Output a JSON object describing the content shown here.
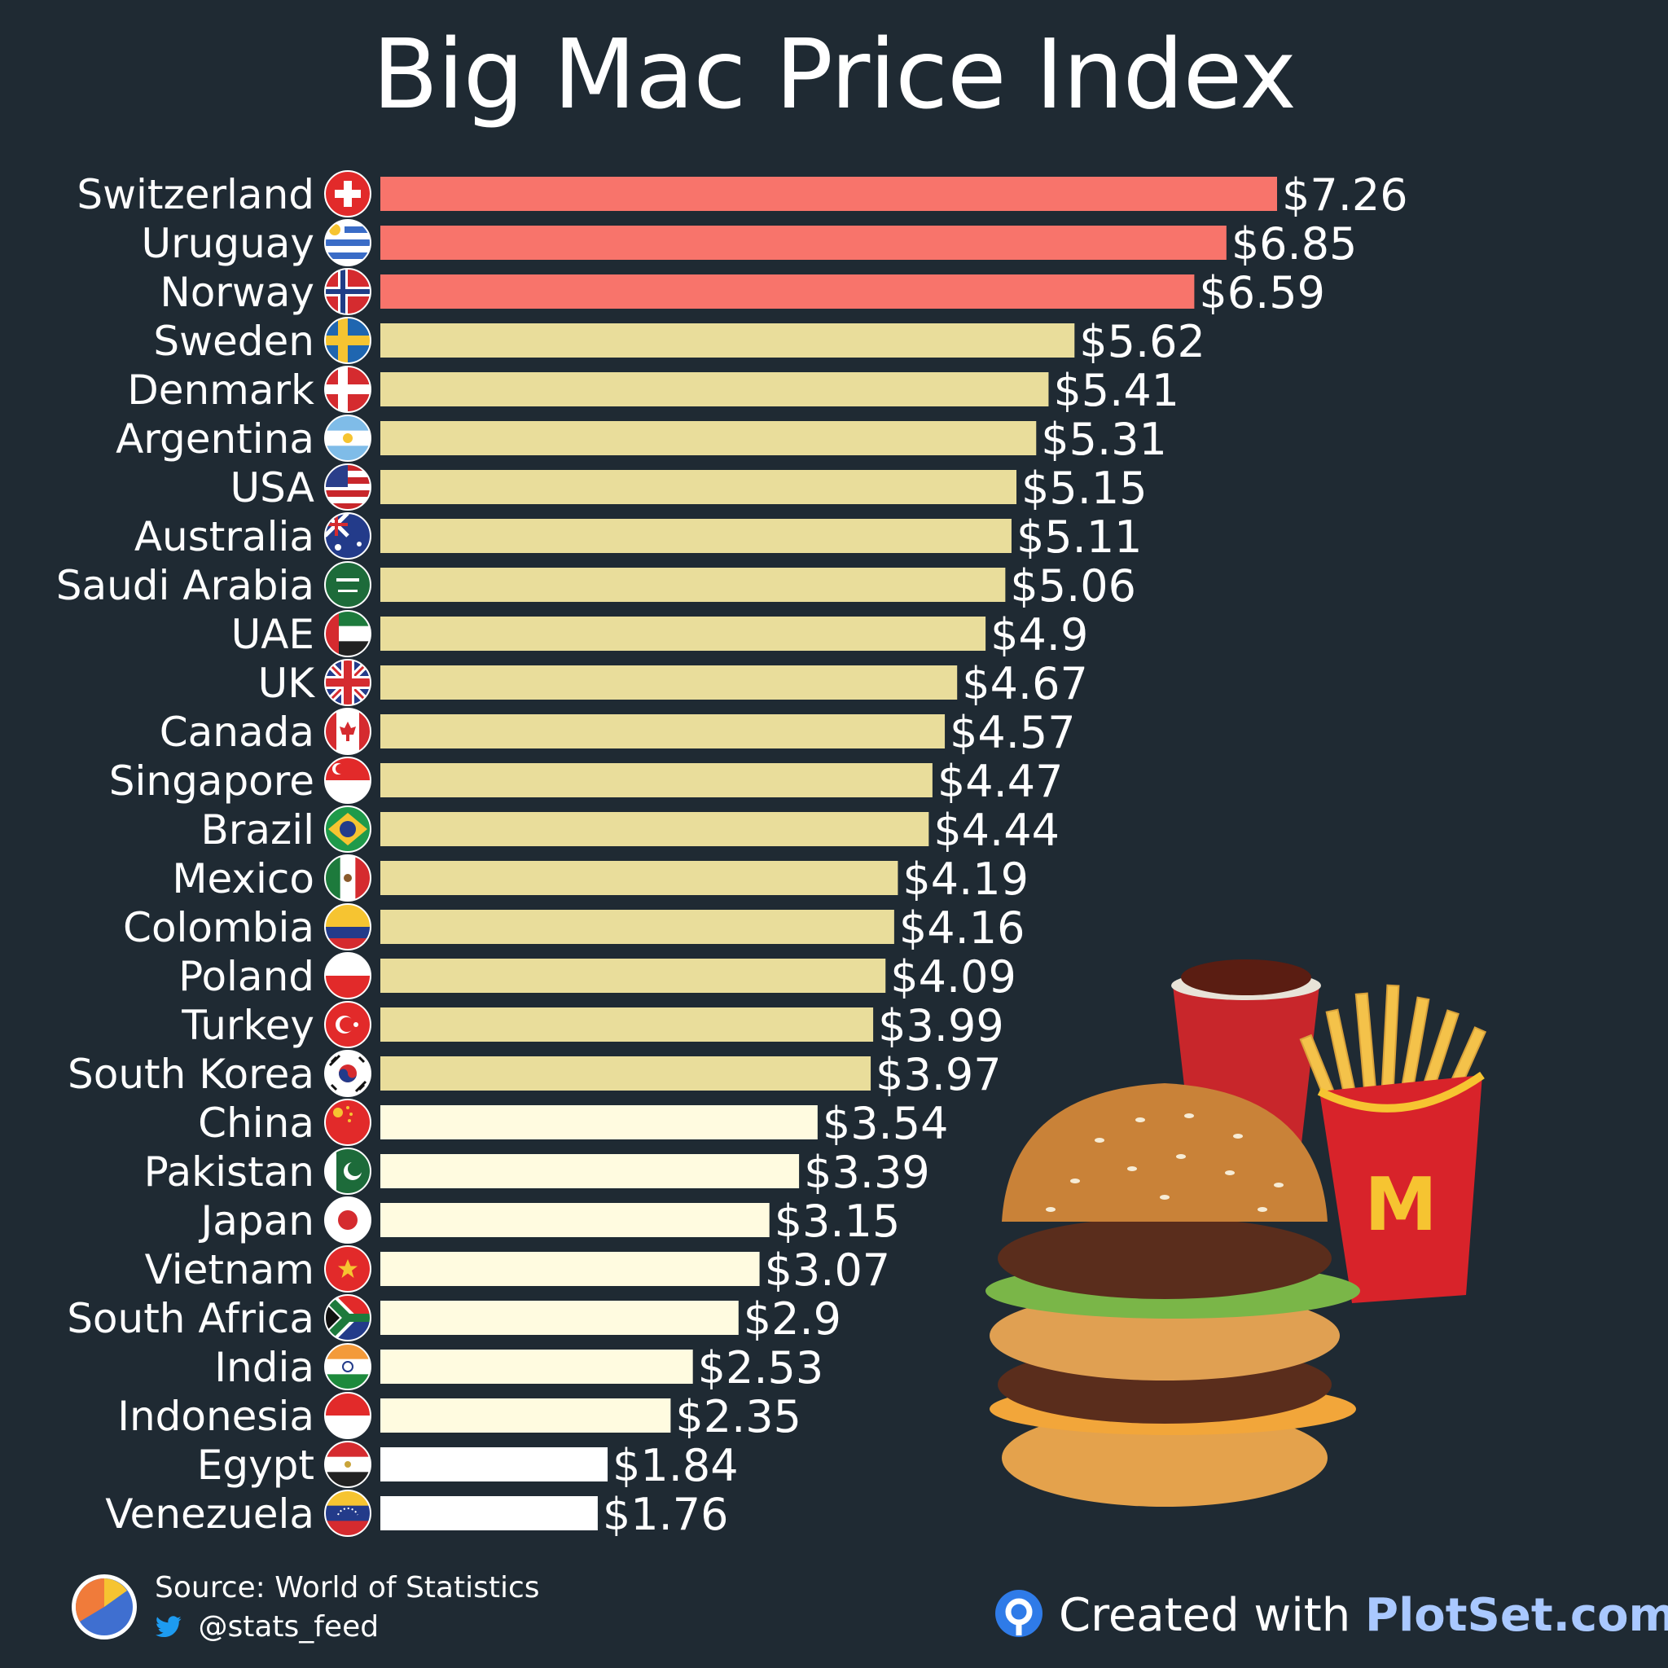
{
  "title": "Big Mac Price Index",
  "colors": {
    "background": "#1f2a33",
    "tier_high": "#f8746b",
    "tier_mid": "#e9dd9b",
    "tier_low": "#fffbe0",
    "tier_lowest": "#ffffff"
  },
  "chart_data": {
    "type": "bar",
    "orientation": "horizontal",
    "title": "Big Mac Price Index",
    "categories": [
      "Switzerland",
      "Uruguay",
      "Norway",
      "Sweden",
      "Denmark",
      "Argentina",
      "USA",
      "Australia",
      "Saudi Arabia",
      "UAE",
      "UK",
      "Canada",
      "Singapore",
      "Brazil",
      "Mexico",
      "Colombia",
      "Poland",
      "Turkey",
      "South Korea",
      "China",
      "Pakistan",
      "Japan",
      "Vietnam",
      "South Africa",
      "India",
      "Indonesia",
      "Egypt",
      "Venezuela"
    ],
    "values": [
      7.26,
      6.85,
      6.59,
      5.62,
      5.41,
      5.31,
      5.15,
      5.11,
      5.06,
      4.9,
      4.67,
      4.57,
      4.47,
      4.44,
      4.19,
      4.16,
      4.09,
      3.99,
      3.97,
      3.54,
      3.39,
      3.15,
      3.07,
      2.9,
      2.53,
      2.35,
      1.84,
      1.76
    ],
    "value_labels": [
      "$7.26",
      "$6.85",
      "$6.59",
      "$5.62",
      "$5.41",
      "$5.31",
      "$5.15",
      "$5.11",
      "$5.06",
      "$4.9",
      "$4.67",
      "$4.57",
      "$4.47",
      "$4.44",
      "$4.19",
      "$4.16",
      "$4.09",
      "$3.99",
      "$3.97",
      "$3.54",
      "$3.39",
      "$3.15",
      "$3.07",
      "$2.9",
      "$2.53",
      "$2.35",
      "$1.84",
      "$1.76"
    ],
    "flag_icons": [
      "switzerland-flag-icon",
      "uruguay-flag-icon",
      "norway-flag-icon",
      "sweden-flag-icon",
      "denmark-flag-icon",
      "argentina-flag-icon",
      "usa-flag-icon",
      "australia-flag-icon",
      "saudi-arabia-flag-icon",
      "uae-flag-icon",
      "uk-flag-icon",
      "canada-flag-icon",
      "singapore-flag-icon",
      "brazil-flag-icon",
      "mexico-flag-icon",
      "colombia-flag-icon",
      "poland-flag-icon",
      "turkey-flag-icon",
      "south-korea-flag-icon",
      "china-flag-icon",
      "pakistan-flag-icon",
      "japan-flag-icon",
      "vietnam-flag-icon",
      "south-africa-flag-icon",
      "india-flag-icon",
      "indonesia-flag-icon",
      "egypt-flag-icon",
      "venezuela-flag-icon"
    ],
    "tiers": [
      "high",
      "high",
      "high",
      "mid",
      "mid",
      "mid",
      "mid",
      "mid",
      "mid",
      "mid",
      "mid",
      "mid",
      "mid",
      "mid",
      "mid",
      "mid",
      "mid",
      "mid",
      "mid",
      "low",
      "low",
      "low",
      "low",
      "low",
      "low",
      "low",
      "lowest",
      "lowest"
    ],
    "xlim": [
      0,
      7.26
    ],
    "grid": false,
    "legend": "none"
  },
  "footer": {
    "source": "Source: World of Statistics",
    "twitter_handle": "@stats_feed",
    "credit_prefix": "Created with ",
    "credit_brand": "PlotSet.com"
  }
}
